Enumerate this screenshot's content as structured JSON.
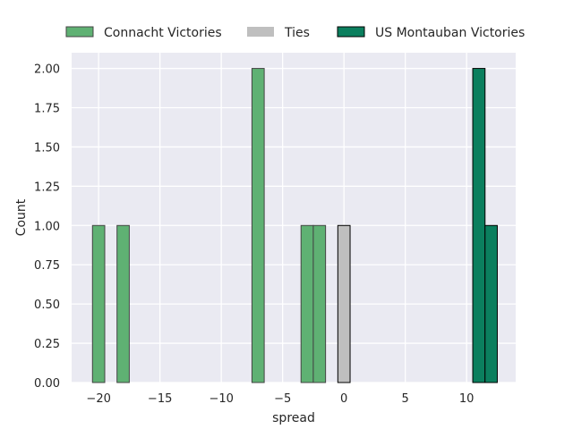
{
  "chart_data": {
    "type": "bar",
    "xlabel": "spread",
    "ylabel": "Count",
    "xlim": [
      -22.2,
      14.0
    ],
    "ylim": [
      0,
      2.1
    ],
    "xticks": [
      -20,
      -15,
      -10,
      -5,
      0,
      5,
      10
    ],
    "xtick_labels": [
      "−20",
      "−15",
      "−10",
      "−5",
      "0",
      "5",
      "10"
    ],
    "yticks": [
      0,
      0.25,
      0.5,
      0.75,
      1.0,
      1.25,
      1.5,
      1.75,
      2.0
    ],
    "ytick_labels": [
      "0.00",
      "0.25",
      "0.50",
      "0.75",
      "1.00",
      "1.25",
      "1.50",
      "1.75",
      "2.00"
    ],
    "bin_width": 1,
    "grid": true,
    "legend_placement": "top",
    "series": [
      {
        "name": "Connacht Victories",
        "color": "#5fb173",
        "edge": "#444444",
        "bins": [
          {
            "start": -20.5,
            "end": -19.5,
            "count": 1
          },
          {
            "start": -18.5,
            "end": -17.5,
            "count": 1
          },
          {
            "start": -7.5,
            "end": -6.5,
            "count": 2
          },
          {
            "start": -3.5,
            "end": -2.5,
            "count": 1
          },
          {
            "start": -2.5,
            "end": -1.5,
            "count": 1
          }
        ]
      },
      {
        "name": "Ties",
        "color": "#bfbfbf",
        "edge": "#000000",
        "bins": [
          {
            "start": -0.5,
            "end": 0.5,
            "count": 1
          }
        ]
      },
      {
        "name": "US Montauban Victories",
        "color": "#0b7f5e",
        "edge": "#000000",
        "bins": [
          {
            "start": 10.5,
            "end": 11.5,
            "count": 2
          },
          {
            "start": 11.5,
            "end": 12.5,
            "count": 1
          }
        ]
      }
    ]
  }
}
